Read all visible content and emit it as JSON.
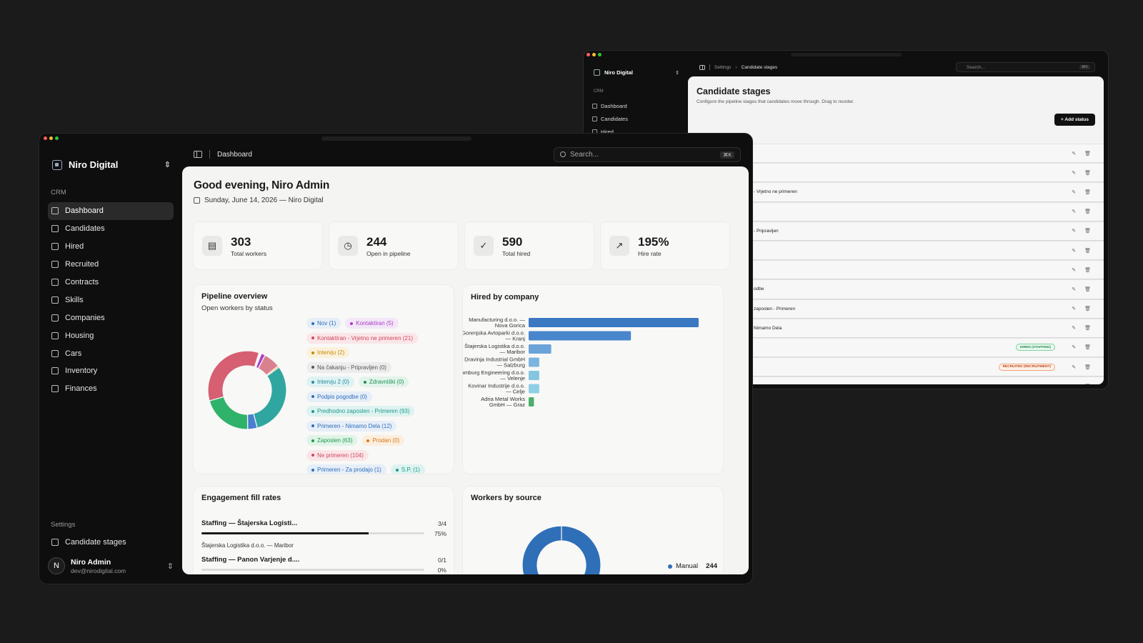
{
  "back": {
    "brand": "Niro Digital",
    "group": "CRM",
    "nav": [
      "Dashboard",
      "Candidates",
      "Hired"
    ],
    "crumb_parent": "Settings",
    "crumb_current": "Candidate stages",
    "search_placeholder": "Search...",
    "search_kbd": "⌘K",
    "title": "Candidate stages",
    "description": "Configure the pipeline stages that candidates move through. Drag to reorder.",
    "add_button": "Add status",
    "rows": [
      {
        "label": ""
      },
      {
        "label": ""
      },
      {
        "label": "- Vrjetno ne primeren"
      },
      {
        "label": ""
      },
      {
        "label": "- Pripravljen"
      },
      {
        "label": ""
      },
      {
        "label": ""
      },
      {
        "label": "odbe"
      },
      {
        "label": "zaposlen - Primeren"
      },
      {
        "label": "Nimamo Dela"
      },
      {
        "label": "",
        "tag": "HIRED (STAFFING)",
        "tag_kind": "hired"
      },
      {
        "label": "",
        "tag": "RECRUITED (RECRUITMENT)",
        "tag_kind": "rec"
      },
      {
        "label": ""
      }
    ]
  },
  "front": {
    "brand": "Niro Digital",
    "group_crm": "CRM",
    "nav": [
      {
        "label": "Dashboard",
        "icon": "dashboard-icon",
        "active": true
      },
      {
        "label": "Candidates",
        "icon": "candidates-icon"
      },
      {
        "label": "Hired",
        "icon": "hired-icon"
      },
      {
        "label": "Recruited",
        "icon": "recruited-icon"
      },
      {
        "label": "Contracts",
        "icon": "contracts-icon"
      },
      {
        "label": "Skills",
        "icon": "skills-icon"
      },
      {
        "label": "Companies",
        "icon": "companies-icon"
      },
      {
        "label": "Housing",
        "icon": "housing-icon"
      },
      {
        "label": "Cars",
        "icon": "car-icon"
      },
      {
        "label": "Inventory",
        "icon": "inventory-icon"
      },
      {
        "label": "Finances",
        "icon": "finances-icon"
      }
    ],
    "group_settings": "Settings",
    "settings_item": "Candidate stages",
    "user": {
      "initial": "N",
      "name": "Niro Admin",
      "email": "dev@nirodigital.com"
    },
    "breadcrumb": "Dashboard",
    "search_placeholder": "Search...",
    "search_kbd": "⌘K",
    "greeting": "Good evening, Niro Admin",
    "date_line": "Sunday, June 14, 2026 — Niro Digital",
    "stats": [
      {
        "value": "303",
        "label": "Total workers",
        "icon": "clipboard-icon"
      },
      {
        "value": "244",
        "label": "Open in pipeline",
        "icon": "clock-icon"
      },
      {
        "value": "590",
        "label": "Total hired",
        "icon": "check-circle-icon"
      },
      {
        "value": "195%",
        "label": "Hire rate",
        "icon": "trending-up-icon"
      }
    ],
    "pipeline": {
      "title": "Pipeline overview",
      "subtitle": "Open workers by status",
      "chips": [
        [
          {
            "text": "Nov (1)",
            "color": "#2f6fb8",
            "bg": "#e6eef8"
          },
          {
            "text": "Kontaktiran (5)",
            "color": "#a83fc4",
            "bg": "#f3e6f8"
          }
        ],
        [
          {
            "text": "Kontaktiran - Vrjetno ne primeren (21)",
            "color": "#d2475b",
            "bg": "#fae6e9"
          }
        ],
        [
          {
            "text": "Intervju (2)",
            "color": "#c98a00",
            "bg": "#fbf1dc"
          }
        ],
        [
          {
            "text": "Na čakanju - Pripravljen (0)",
            "color": "#555555",
            "bg": "#ececec"
          }
        ],
        [
          {
            "text": "Intervju 2 (0)",
            "color": "#1f8f9a",
            "bg": "#e0f2f3"
          },
          {
            "text": "Zdravniški (0)",
            "color": "#1f8f5a",
            "bg": "#e2f4ea"
          }
        ],
        [
          {
            "text": "Podpis pogodbe (0)",
            "color": "#2f6fb8",
            "bg": "#e6eef8"
          }
        ],
        [
          {
            "text": "Predhodno zaposlen - Primeren (93)",
            "color": "#1f9a8c",
            "bg": "#def3f0"
          }
        ],
        [
          {
            "text": "Primeren - Nimamo Dela (12)",
            "color": "#2f6fb8",
            "bg": "#e6eef8"
          }
        ],
        [
          {
            "text": "Zaposlen (63)",
            "color": "#1f9a4c",
            "bg": "#e0f4e8"
          },
          {
            "text": "Prodan (0)",
            "color": "#d9771a",
            "bg": "#fbeede"
          }
        ],
        [
          {
            "text": "Ne primeren (104)",
            "color": "#d2475b",
            "bg": "#fae6e9"
          }
        ],
        [
          {
            "text": "Primeren - Za prodajo (1)",
            "color": "#2f6fb8",
            "bg": "#e6eef8"
          },
          {
            "text": "S.P. (1)",
            "color": "#1f9a8c",
            "bg": "#def3f0"
          }
        ]
      ]
    },
    "hired": {
      "title": "Hired by company"
    },
    "engagement": {
      "title": "Engagement fill rates",
      "rows": [
        {
          "name": "Staffing — Štajerska Logisti...",
          "frac": "3/4",
          "pct": "75%",
          "fill": 0.75,
          "sub": "Štajerska Logistika d.o.o. — Maribor"
        },
        {
          "name": "Staffing — Panon Varjenje d....",
          "frac": "0/1",
          "pct": "0%",
          "fill": 0,
          "sub": ""
        }
      ]
    },
    "source": {
      "title": "Workers by source",
      "legend_label": "Manual",
      "legend_value": "244"
    }
  },
  "chart_data": [
    {
      "type": "pie",
      "title": "Pipeline overview",
      "categories": [
        "Nov",
        "Kontaktiran",
        "Kontaktiran - Vrjetno ne primeren",
        "Intervju",
        "Na čakanju - Pripravljen",
        "Intervju 2",
        "Zdravniški",
        "Podpis pogodbe",
        "Predhodno zaposlen - Primeren",
        "Primeren - Nimamo Dela",
        "Zaposlen",
        "Prodan",
        "Ne primeren",
        "Primeren - Za prodajo",
        "S.P."
      ],
      "values": [
        1,
        5,
        21,
        2,
        0,
        0,
        0,
        0,
        93,
        12,
        63,
        0,
        104,
        1,
        1
      ],
      "colors": [
        "#2f6fb8",
        "#a83fc4",
        "#d9818f",
        "#e0b030",
        "#888888",
        "#3fb3c0",
        "#2fa86a",
        "#4a7fd0",
        "#2fa6a0",
        "#4a7fd0",
        "#2fb36a",
        "#e08a30",
        "#d65f72",
        "#4a7fd0",
        "#2fa6a0"
      ]
    },
    {
      "type": "bar",
      "title": "Hired by company",
      "categories": [
        "Manufacturing d.o.o. — Nova Gorica",
        "Gorenjska Avtoparki d.o.o. — Kranj",
        "Štajerska Logistika d.o.o. — Maribor",
        "Dravinja Industrial GmbH — Salzburg",
        "Hamburg Engineering d.o.o. — Velenje",
        "Kovinar Industrije d.o.o. — Celje",
        "Adria Metal Works GmbH — Graz"
      ],
      "values": [
        128,
        77,
        17,
        8,
        8,
        8,
        4
      ],
      "colors": [
        "#3a78c2",
        "#4a86cc",
        "#6aa3d8",
        "#7cb4e0",
        "#86c5e0",
        "#8fd0e4",
        "#4caf6a"
      ]
    },
    {
      "type": "pie",
      "title": "Workers by source",
      "categories": [
        "Manual"
      ],
      "values": [
        244
      ],
      "colors": [
        "#2f6fb8"
      ]
    }
  ]
}
